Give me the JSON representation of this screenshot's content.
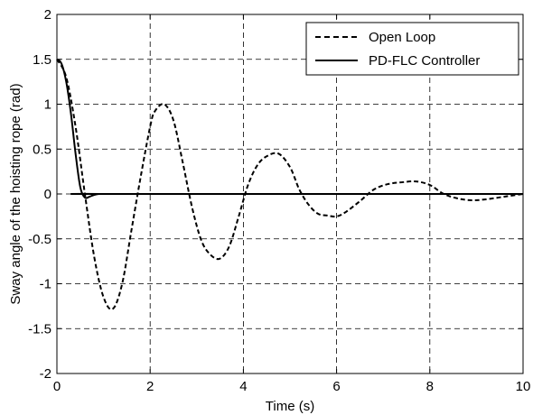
{
  "chart_data": {
    "type": "line",
    "xlabel": "Time (s)",
    "ylabel": "Sway angle of the hoisting rope (rad)",
    "xlim": [
      0,
      10
    ],
    "ylim": [
      -2,
      2
    ],
    "xticks": [
      "0",
      "2",
      "4",
      "6",
      "8",
      "10"
    ],
    "yticks": [
      "2",
      "1.5",
      "1",
      "0.5",
      "0",
      "-0.5",
      "-1",
      "-1.5",
      "-2"
    ],
    "grid": true,
    "legend_position": "top-right",
    "series": [
      {
        "name": "Open Loop",
        "style": "dashed",
        "color": "#000000",
        "x": [
          0,
          0.2,
          0.4,
          0.6,
          0.8,
          1.0,
          1.2,
          1.4,
          1.6,
          1.8,
          2.0,
          2.1,
          2.3,
          2.5,
          2.7,
          2.9,
          3.1,
          3.3,
          3.5,
          3.7,
          3.9,
          4.1,
          4.3,
          4.5,
          4.75,
          5.0,
          5.2,
          5.4,
          5.6,
          5.8,
          6.0,
          6.2,
          6.5,
          6.8,
          7.1,
          7.4,
          7.7,
          8.0,
          8.3,
          8.6,
          8.9,
          9.2,
          9.6,
          10.0
        ],
        "y": [
          1.5,
          1.3,
          0.75,
          0.0,
          -0.7,
          -1.15,
          -1.28,
          -1.0,
          -0.4,
          0.2,
          0.75,
          0.92,
          1.0,
          0.82,
          0.35,
          -0.15,
          -0.52,
          -0.68,
          -0.72,
          -0.58,
          -0.25,
          0.1,
          0.32,
          0.42,
          0.45,
          0.3,
          0.05,
          -0.12,
          -0.22,
          -0.24,
          -0.25,
          -0.2,
          -0.08,
          0.05,
          0.11,
          0.13,
          0.14,
          0.1,
          0.0,
          -0.05,
          -0.07,
          -0.06,
          -0.03,
          0.0
        ]
      },
      {
        "name": "PD-FLC Controller",
        "style": "solid",
        "color": "#000000",
        "x": [
          0,
          0.1,
          0.2,
          0.3,
          0.4,
          0.5,
          0.6,
          0.7,
          0.8,
          0.9,
          1.0,
          10.0
        ],
        "y": [
          1.5,
          1.45,
          1.25,
          0.9,
          0.45,
          0.08,
          -0.04,
          -0.03,
          -0.01,
          0.0,
          0.0,
          0.0
        ]
      }
    ]
  }
}
